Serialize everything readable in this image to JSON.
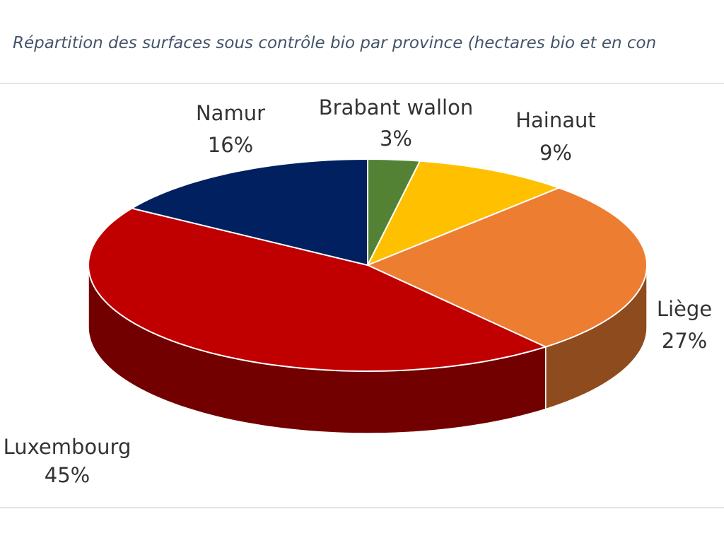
{
  "chart_data": {
    "type": "pie3d",
    "title": "Répartition des surfaces sous contrôle bio par province (hectares bio et en con",
    "categories": [
      "Brabant wallon",
      "Hainaut",
      "Liège",
      "Luxembourg",
      "Namur"
    ],
    "values": [
      3,
      9,
      27,
      45,
      16
    ],
    "value_labels": [
      "3%",
      "9%",
      "27%",
      "45%",
      "16%"
    ],
    "colors": [
      "#548235",
      "#ffc000",
      "#ed7d31",
      "#c00000",
      "#002060"
    ]
  }
}
